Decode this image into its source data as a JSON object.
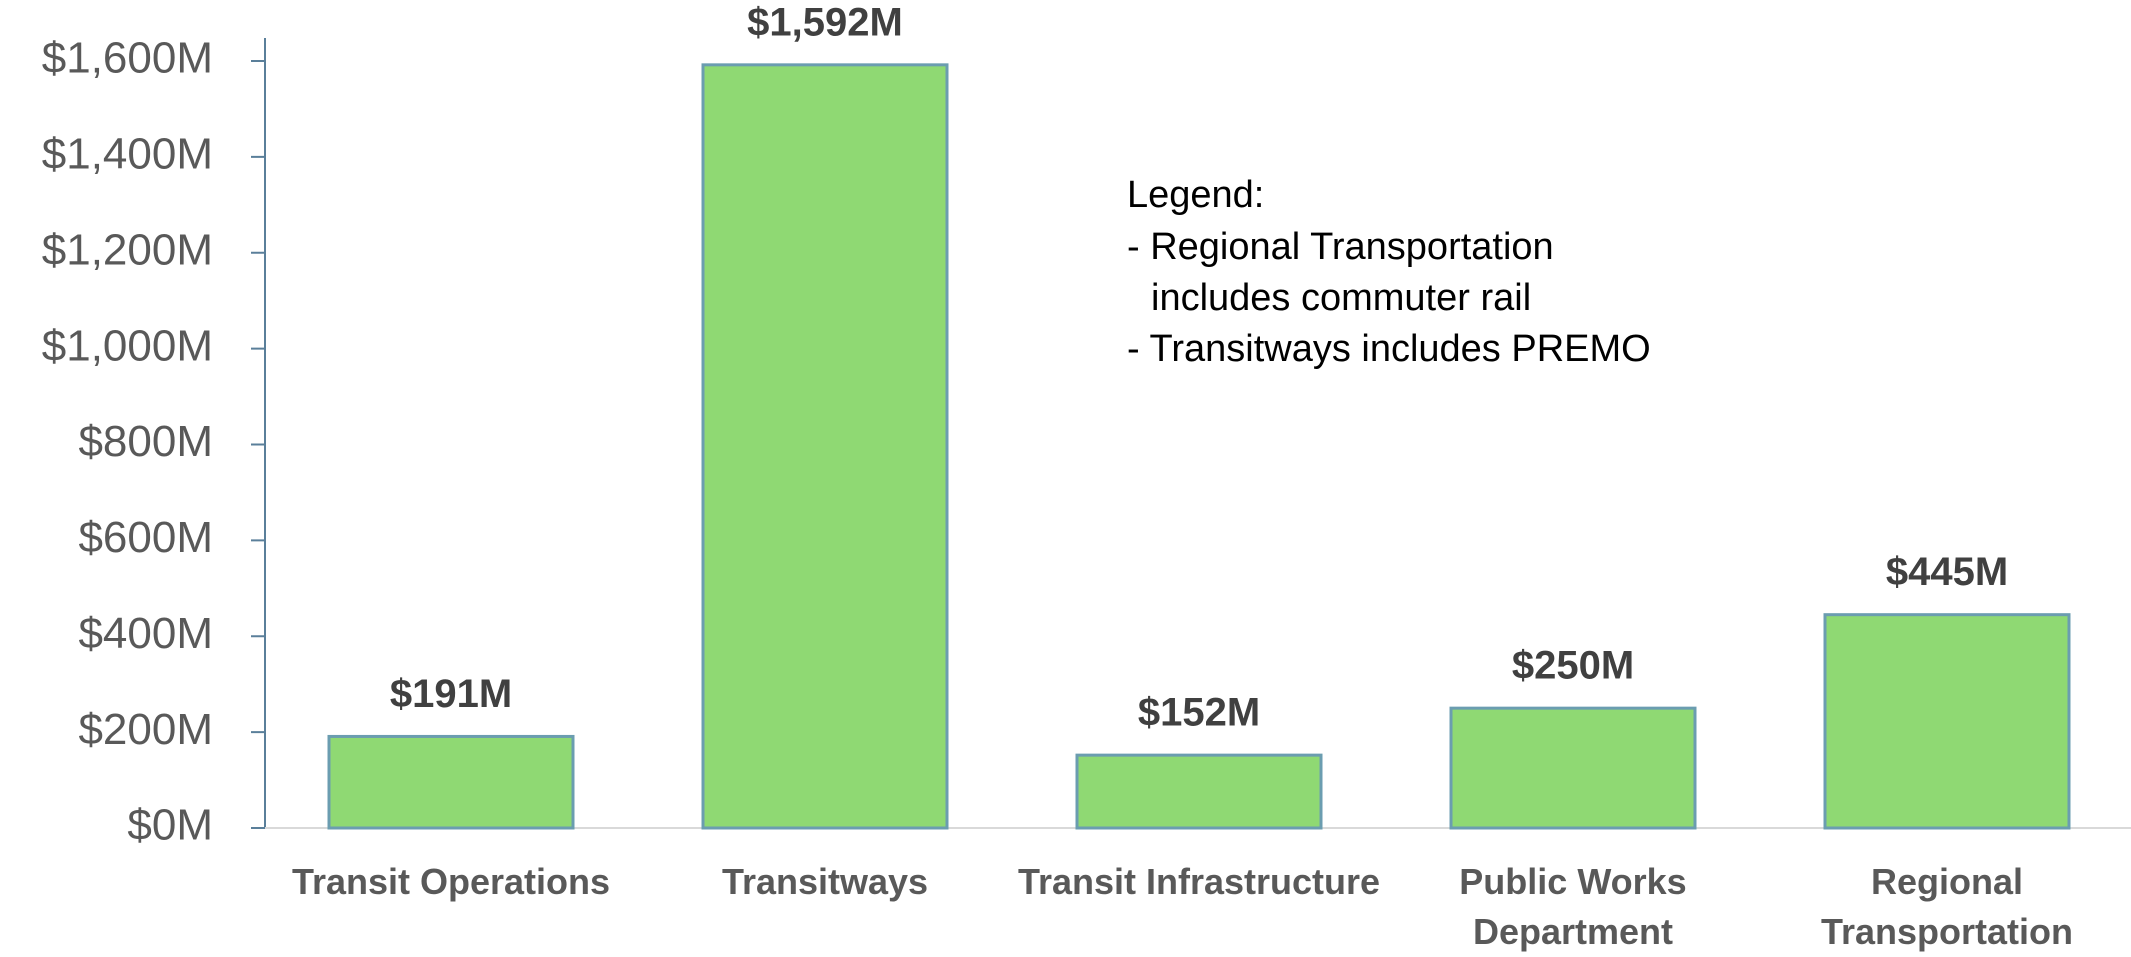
{
  "chart_data": {
    "type": "bar",
    "categories": [
      "Transit Operations",
      "Transitways",
      "Transit Infrastructure",
      "Public Works Department",
      "Regional Transportation"
    ],
    "values": [
      191,
      1592,
      152,
      250,
      445
    ],
    "value_labels": [
      "$191M",
      "$1,592M",
      "$152M",
      "$250M",
      "$445M"
    ],
    "color": "#8fd973",
    "ylim": [
      0,
      1600
    ],
    "yticks": [
      {
        "value": 0,
        "label": "$0M"
      },
      {
        "value": 200,
        "label": "$200M"
      },
      {
        "value": 400,
        "label": "$400M"
      },
      {
        "value": 600,
        "label": "$600M"
      },
      {
        "value": 800,
        "label": "$800M"
      },
      {
        "value": 1000,
        "label": "$1,000M"
      },
      {
        "value": 1200,
        "label": "$1,200M"
      },
      {
        "value": 1400,
        "label": "$1,400M"
      },
      {
        "value": 1600,
        "label": "$1,600M"
      }
    ],
    "grid": false,
    "annotations": [
      "Legend:",
      "- Regional Transportation includes commuter rail",
      "- Transitways includes PREMO"
    ]
  }
}
